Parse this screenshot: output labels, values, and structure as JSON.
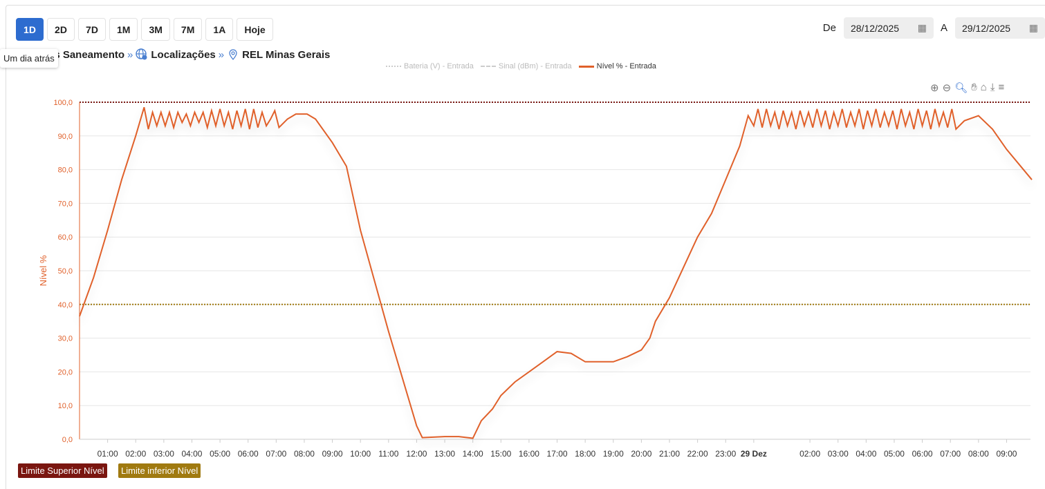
{
  "ranges": [
    "1D",
    "2D",
    "7D",
    "1M",
    "3M",
    "7M",
    "1A",
    "Hoje"
  ],
  "active_range": "1D",
  "tooltip": "Um dia atrás",
  "breadcrumb": [
    "nos Saneamento",
    "Localizações",
    "REL Minas Gerais"
  ],
  "dates": {
    "from_label": "De",
    "from": "28/12/2025",
    "to_label": "A",
    "to": "29/12/2025"
  },
  "legend": [
    {
      "name": "Bateria (V) - Entrada",
      "color": "#cccccc"
    },
    {
      "name": "Sinal (dBm) - Entrada",
      "color": "#cccccc"
    },
    {
      "name": "Nível % - Entrada",
      "color": "#e0602a"
    }
  ],
  "limits": [
    {
      "name": "Limite Superior Nível",
      "value": 100,
      "color": "#7a1610"
    },
    {
      "name": "Limite inferior Nível",
      "value": 40,
      "color": "#a07a10"
    }
  ],
  "colors": {
    "series": "#e0602a",
    "axis": "#e0602a"
  },
  "chart_data": {
    "type": "line",
    "ylabel": "Nível %",
    "ylim": [
      0,
      100
    ],
    "yticks": [
      "0,0",
      "10,0",
      "20,0",
      "30,0",
      "40,0",
      "50,0",
      "60,0",
      "70,0",
      "80,0",
      "90,0",
      "100,0"
    ],
    "xlim_hours": [
      0,
      33.9
    ],
    "xticks": [
      {
        "h": 1,
        "l": "01:00"
      },
      {
        "h": 2,
        "l": "02:00"
      },
      {
        "h": 3,
        "l": "03:00"
      },
      {
        "h": 4,
        "l": "04:00"
      },
      {
        "h": 5,
        "l": "05:00"
      },
      {
        "h": 6,
        "l": "06:00"
      },
      {
        "h": 7,
        "l": "07:00"
      },
      {
        "h": 8,
        "l": "08:00"
      },
      {
        "h": 9,
        "l": "09:00"
      },
      {
        "h": 10,
        "l": "10:00"
      },
      {
        "h": 11,
        "l": "11:00"
      },
      {
        "h": 12,
        "l": "12:00"
      },
      {
        "h": 13,
        "l": "13:00"
      },
      {
        "h": 14,
        "l": "14:00"
      },
      {
        "h": 15,
        "l": "15:00"
      },
      {
        "h": 16,
        "l": "16:00"
      },
      {
        "h": 17,
        "l": "17:00"
      },
      {
        "h": 18,
        "l": "18:00"
      },
      {
        "h": 19,
        "l": "19:00"
      },
      {
        "h": 20,
        "l": "20:00"
      },
      {
        "h": 21,
        "l": "21:00"
      },
      {
        "h": 22,
        "l": "22:00"
      },
      {
        "h": 23,
        "l": "23:00"
      },
      {
        "h": 24,
        "l": "29 Dez",
        "bold": true
      },
      {
        "h": 26,
        "l": "02:00"
      },
      {
        "h": 27,
        "l": "03:00"
      },
      {
        "h": 28,
        "l": "04:00"
      },
      {
        "h": 29,
        "l": "05:00"
      },
      {
        "h": 30,
        "l": "06:00"
      },
      {
        "h": 31,
        "l": "07:00"
      },
      {
        "h": 32,
        "l": "08:00"
      },
      {
        "h": 33,
        "l": "09:00"
      }
    ],
    "series": [
      {
        "name": "Nível % - Entrada",
        "points": [
          [
            0,
            36.5
          ],
          [
            0.5,
            48
          ],
          [
            1,
            62
          ],
          [
            1.5,
            77
          ],
          [
            2,
            90
          ],
          [
            2.3,
            98.5
          ],
          [
            2.45,
            92
          ],
          [
            2.6,
            97
          ],
          [
            2.75,
            93
          ],
          [
            2.9,
            97
          ],
          [
            3.05,
            93
          ],
          [
            3.2,
            97
          ],
          [
            3.35,
            92.5
          ],
          [
            3.5,
            97
          ],
          [
            3.65,
            94
          ],
          [
            3.8,
            96.5
          ],
          [
            3.95,
            93
          ],
          [
            4.1,
            97
          ],
          [
            4.25,
            94
          ],
          [
            4.4,
            97
          ],
          [
            4.55,
            92.5
          ],
          [
            4.7,
            97.5
          ],
          [
            4.85,
            93
          ],
          [
            5.0,
            98
          ],
          [
            5.15,
            93
          ],
          [
            5.3,
            97
          ],
          [
            5.45,
            92
          ],
          [
            5.6,
            97.5
          ],
          [
            5.75,
            93
          ],
          [
            5.9,
            98
          ],
          [
            6.05,
            92
          ],
          [
            6.2,
            98
          ],
          [
            6.35,
            92.5
          ],
          [
            6.5,
            97
          ],
          [
            6.65,
            93
          ],
          [
            6.8,
            95
          ],
          [
            6.95,
            97.5
          ],
          [
            7.1,
            92.5
          ],
          [
            7.4,
            95
          ],
          [
            7.7,
            96.5
          ],
          [
            8.1,
            96.5
          ],
          [
            8.4,
            95
          ],
          [
            9.0,
            88
          ],
          [
            9.5,
            81
          ],
          [
            10.0,
            62
          ],
          [
            10.5,
            47
          ],
          [
            11.0,
            32
          ],
          [
            11.5,
            18
          ],
          [
            12.0,
            4
          ],
          [
            12.2,
            0.5
          ],
          [
            13.0,
            0.8
          ],
          [
            13.5,
            0.8
          ],
          [
            14.0,
            0.3
          ],
          [
            14.3,
            5.5
          ],
          [
            14.7,
            9
          ],
          [
            15.0,
            13
          ],
          [
            15.5,
            17
          ],
          [
            16.0,
            20
          ],
          [
            16.5,
            23
          ],
          [
            17.0,
            26
          ],
          [
            17.5,
            25.5
          ],
          [
            18.0,
            23
          ],
          [
            18.5,
            23
          ],
          [
            19.0,
            23
          ],
          [
            19.5,
            24.5
          ],
          [
            20.0,
            26.5
          ],
          [
            20.3,
            30
          ],
          [
            20.5,
            35
          ],
          [
            21.0,
            42
          ],
          [
            21.5,
            51
          ],
          [
            22.0,
            60
          ],
          [
            22.5,
            67
          ],
          [
            23.0,
            77
          ],
          [
            23.5,
            87
          ],
          [
            23.8,
            96
          ],
          [
            24.0,
            93
          ],
          [
            24.15,
            98
          ],
          [
            24.3,
            92.5
          ],
          [
            24.45,
            98
          ],
          [
            24.6,
            93
          ],
          [
            24.75,
            97
          ],
          [
            24.9,
            92
          ],
          [
            25.05,
            97.5
          ],
          [
            25.2,
            93
          ],
          [
            25.35,
            97
          ],
          [
            25.5,
            92
          ],
          [
            25.65,
            97.5
          ],
          [
            25.8,
            93
          ],
          [
            25.95,
            97
          ],
          [
            26.1,
            92.5
          ],
          [
            26.25,
            98
          ],
          [
            26.4,
            93
          ],
          [
            26.55,
            97.5
          ],
          [
            26.7,
            92
          ],
          [
            26.85,
            97
          ],
          [
            27.0,
            93
          ],
          [
            27.15,
            98
          ],
          [
            27.3,
            92.5
          ],
          [
            27.45,
            97
          ],
          [
            27.6,
            93
          ],
          [
            27.75,
            98
          ],
          [
            27.9,
            92
          ],
          [
            28.05,
            97.5
          ],
          [
            28.2,
            93
          ],
          [
            28.35,
            98
          ],
          [
            28.5,
            92.5
          ],
          [
            28.65,
            97
          ],
          [
            28.8,
            93
          ],
          [
            28.95,
            97.5
          ],
          [
            29.1,
            92
          ],
          [
            29.25,
            98
          ],
          [
            29.4,
            93
          ],
          [
            29.55,
            97
          ],
          [
            29.7,
            92
          ],
          [
            29.85,
            98
          ],
          [
            30.0,
            93
          ],
          [
            30.15,
            97.5
          ],
          [
            30.3,
            92
          ],
          [
            30.45,
            98
          ],
          [
            30.6,
            93
          ],
          [
            30.75,
            97
          ],
          [
            30.9,
            92.5
          ],
          [
            31.05,
            98
          ],
          [
            31.2,
            92
          ],
          [
            31.5,
            94.5
          ],
          [
            32.0,
            96
          ],
          [
            32.5,
            92
          ],
          [
            33.0,
            86
          ],
          [
            33.5,
            81
          ],
          [
            33.9,
            77
          ]
        ]
      }
    ]
  }
}
